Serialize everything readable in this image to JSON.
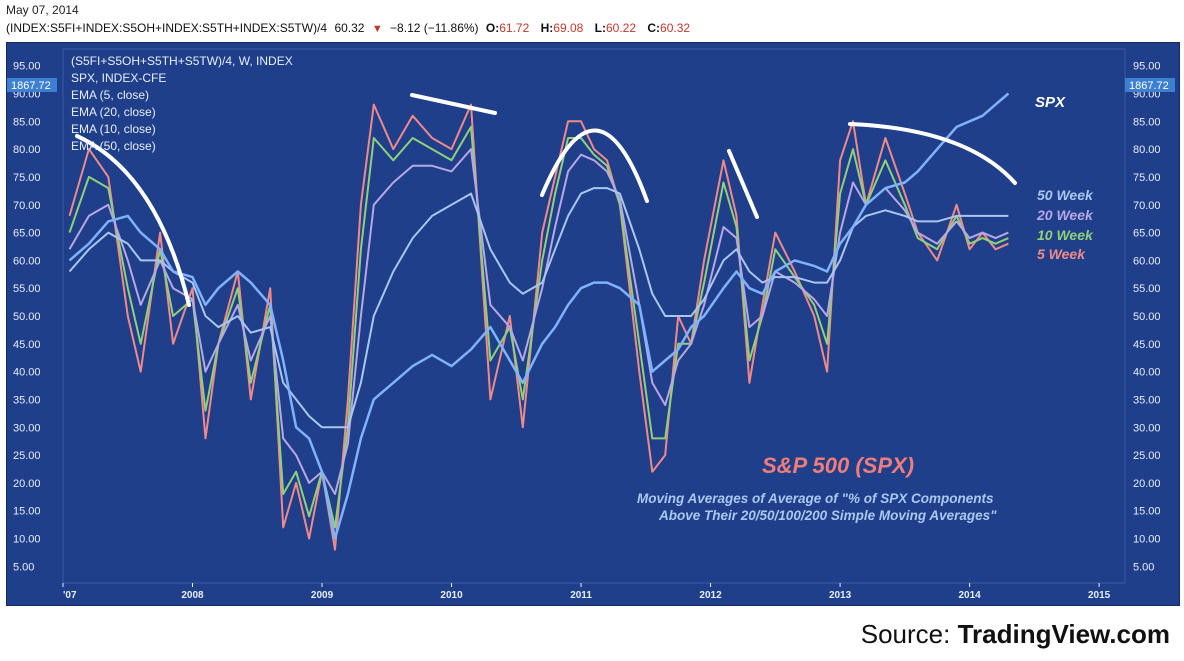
{
  "header": {
    "date": "May 07, 2014",
    "symbol": "(INDEX:S5FI+INDEX:S5OH+INDEX:S5TH+INDEX:S5TW)/4",
    "last": "60.32",
    "change": "−8.12 (−11.86%)",
    "open_label": "O:",
    "open": "61.72",
    "high_label": "H:",
    "high": "69.08",
    "low_label": "L:",
    "low": "60.22",
    "close_label": "C:",
    "close": "60.32"
  },
  "legend": [
    "(S5FI+S5OH+S5TH+S5TW)/4, W, INDEX",
    "SPX, INDEX-CFE",
    "EMA (5, close)",
    "EMA (20, close)",
    "EMA (10, close)",
    "EMA (50, close)"
  ],
  "annotations": {
    "title": "S&P 500 (SPX)",
    "subtitle_line1": "Moving Averages of Average of \"% of SPX Components",
    "subtitle_line2": "Above Their 20/50/100/200 Simple Moving Averages\"",
    "spx_label": "SPX",
    "ma_labels": [
      "50 Week",
      "20 Week",
      "10 Week",
      "5 Week"
    ]
  },
  "price_tag": "1867.72",
  "source_prefix": "Source:",
  "source_name": "TradingView.com",
  "colors": {
    "background": "#1f3f8a",
    "ema5": "#f08a8a",
    "ema10": "#8fd07a",
    "ema20": "#b8a6e6",
    "ema50": "#a9c6f0",
    "spx": "#7fb2ff",
    "title": "#f07c7c",
    "subtitle": "#a9c8f2"
  },
  "chart_data": {
    "type": "line",
    "title": "S&P 500 (SPX)",
    "y_ticks": [
      "95.00",
      "90.00",
      "85.00",
      "80.00",
      "75.00",
      "70.00",
      "65.00",
      "60.00",
      "55.00",
      "50.00",
      "45.00",
      "40.00",
      "35.00",
      "30.00",
      "25.00",
      "20.00",
      "15.00",
      "10.00",
      "5.00"
    ],
    "ylim": [
      2,
      98
    ],
    "x_ticks": [
      "'07",
      "2008",
      "2009",
      "2010",
      "2011",
      "2012",
      "2013",
      "2014",
      "2015"
    ],
    "x_tick_values": [
      2007.0,
      2008.0,
      2009.0,
      2010.0,
      2011.0,
      2012.0,
      2013.0,
      2014.0,
      2015.0
    ],
    "xlim": [
      2007.0,
      2015.2
    ],
    "series": [
      {
        "name": "EMA (5, close)",
        "x": [
          2007.05,
          2007.2,
          2007.35,
          2007.5,
          2007.6,
          2007.75,
          2007.85,
          2008.0,
          2008.1,
          2008.2,
          2008.35,
          2008.45,
          2008.6,
          2008.7,
          2008.8,
          2008.9,
          2009.0,
          2009.1,
          2009.2,
          2009.3,
          2009.4,
          2009.55,
          2009.7,
          2009.85,
          2010.0,
          2010.15,
          2010.3,
          2010.45,
          2010.55,
          2010.7,
          2010.8,
          2010.9,
          2011.0,
          2011.1,
          2011.2,
          2011.3,
          2011.45,
          2011.55,
          2011.65,
          2011.75,
          2011.85,
          2011.95,
          2012.1,
          2012.2,
          2012.3,
          2012.4,
          2012.5,
          2012.65,
          2012.8,
          2012.9,
          2013.0,
          2013.1,
          2013.2,
          2013.35,
          2013.5,
          2013.6,
          2013.75,
          2013.9,
          2014.0,
          2014.1,
          2014.2,
          2014.3
        ],
        "values": [
          68,
          80,
          75,
          50,
          40,
          65,
          45,
          55,
          28,
          45,
          58,
          35,
          55,
          12,
          20,
          10,
          22,
          8,
          35,
          70,
          88,
          80,
          86,
          82,
          80,
          88,
          35,
          50,
          30,
          65,
          75,
          85,
          85,
          80,
          78,
          70,
          40,
          22,
          25,
          50,
          45,
          60,
          78,
          68,
          38,
          52,
          65,
          58,
          50,
          40,
          78,
          85,
          70,
          82,
          72,
          65,
          60,
          70,
          62,
          65,
          62,
          63
        ]
      },
      {
        "name": "EMA (10, close)",
        "x": [
          2007.05,
          2007.2,
          2007.35,
          2007.5,
          2007.6,
          2007.75,
          2007.85,
          2008.0,
          2008.1,
          2008.2,
          2008.35,
          2008.45,
          2008.6,
          2008.7,
          2008.8,
          2008.9,
          2009.0,
          2009.1,
          2009.2,
          2009.3,
          2009.4,
          2009.55,
          2009.7,
          2009.85,
          2010.0,
          2010.15,
          2010.3,
          2010.45,
          2010.55,
          2010.7,
          2010.8,
          2010.9,
          2011.0,
          2011.1,
          2011.2,
          2011.3,
          2011.45,
          2011.55,
          2011.65,
          2011.75,
          2011.85,
          2011.95,
          2012.1,
          2012.2,
          2012.3,
          2012.4,
          2012.5,
          2012.65,
          2012.8,
          2012.9,
          2013.0,
          2013.1,
          2013.2,
          2013.35,
          2013.5,
          2013.6,
          2013.75,
          2013.9,
          2014.0,
          2014.1,
          2014.2,
          2014.3
        ],
        "values": [
          65,
          75,
          73,
          55,
          45,
          62,
          50,
          53,
          33,
          45,
          55,
          38,
          52,
          18,
          22,
          14,
          22,
          12,
          30,
          62,
          82,
          78,
          82,
          80,
          78,
          84,
          42,
          48,
          35,
          60,
          72,
          82,
          82,
          79,
          77,
          70,
          45,
          28,
          28,
          45,
          45,
          56,
          74,
          66,
          42,
          50,
          62,
          57,
          52,
          45,
          72,
          80,
          70,
          78,
          70,
          64,
          62,
          68,
          63,
          64,
          63,
          64
        ]
      },
      {
        "name": "EMA (20, close)",
        "x": [
          2007.05,
          2007.2,
          2007.35,
          2007.5,
          2007.6,
          2007.75,
          2007.85,
          2008.0,
          2008.1,
          2008.2,
          2008.35,
          2008.45,
          2008.6,
          2008.7,
          2008.8,
          2008.9,
          2009.0,
          2009.1,
          2009.2,
          2009.3,
          2009.4,
          2009.55,
          2009.7,
          2009.85,
          2010.0,
          2010.15,
          2010.3,
          2010.45,
          2010.55,
          2010.7,
          2010.8,
          2010.9,
          2011.0,
          2011.1,
          2011.2,
          2011.3,
          2011.45,
          2011.55,
          2011.65,
          2011.75,
          2011.85,
          2011.95,
          2012.1,
          2012.2,
          2012.3,
          2012.4,
          2012.5,
          2012.65,
          2012.8,
          2012.9,
          2013.0,
          2013.1,
          2013.2,
          2013.35,
          2013.5,
          2013.6,
          2013.75,
          2013.9,
          2014.0,
          2014.1,
          2014.2,
          2014.3
        ],
        "values": [
          62,
          68,
          70,
          60,
          52,
          60,
          55,
          53,
          40,
          45,
          52,
          42,
          50,
          28,
          25,
          20,
          22,
          18,
          27,
          50,
          70,
          74,
          77,
          77,
          76,
          80,
          52,
          48,
          42,
          55,
          66,
          76,
          79,
          78,
          76,
          71,
          52,
          38,
          34,
          42,
          45,
          52,
          66,
          64,
          48,
          50,
          58,
          56,
          53,
          50,
          65,
          74,
          70,
          73,
          69,
          65,
          63,
          67,
          64,
          65,
          64,
          65
        ]
      },
      {
        "name": "EMA (50, close)",
        "x": [
          2007.05,
          2007.2,
          2007.35,
          2007.5,
          2007.6,
          2007.75,
          2007.85,
          2008.0,
          2008.1,
          2008.2,
          2008.35,
          2008.45,
          2008.6,
          2008.7,
          2008.8,
          2008.9,
          2009.0,
          2009.1,
          2009.2,
          2009.3,
          2009.4,
          2009.55,
          2009.7,
          2009.85,
          2010.0,
          2010.15,
          2010.3,
          2010.45,
          2010.55,
          2010.7,
          2010.8,
          2010.9,
          2011.0,
          2011.1,
          2011.2,
          2011.3,
          2011.45,
          2011.55,
          2011.65,
          2011.75,
          2011.85,
          2011.95,
          2012.1,
          2012.2,
          2012.3,
          2012.4,
          2012.5,
          2012.65,
          2012.8,
          2012.9,
          2013.0,
          2013.1,
          2013.2,
          2013.35,
          2013.5,
          2013.6,
          2013.75,
          2013.9,
          2014.0,
          2014.1,
          2014.2,
          2014.3
        ],
        "values": [
          58,
          62,
          65,
          63,
          60,
          60,
          58,
          56,
          50,
          48,
          50,
          47,
          48,
          38,
          35,
          32,
          30,
          30,
          30,
          38,
          50,
          58,
          64,
          68,
          70,
          72,
          62,
          56,
          54,
          56,
          62,
          68,
          72,
          73,
          73,
          72,
          62,
          54,
          50,
          50,
          50,
          53,
          60,
          62,
          58,
          56,
          57,
          57,
          56,
          56,
          60,
          66,
          68,
          69,
          68,
          67,
          67,
          68,
          68,
          68,
          68,
          68
        ]
      },
      {
        "name": "SPX",
        "x": [
          2007.05,
          2007.2,
          2007.35,
          2007.5,
          2007.6,
          2007.75,
          2007.85,
          2008.0,
          2008.1,
          2008.2,
          2008.35,
          2008.45,
          2008.6,
          2008.7,
          2008.8,
          2008.9,
          2009.0,
          2009.1,
          2009.2,
          2009.3,
          2009.4,
          2009.55,
          2009.7,
          2009.85,
          2010.0,
          2010.15,
          2010.3,
          2010.45,
          2010.55,
          2010.7,
          2010.8,
          2010.9,
          2011.0,
          2011.1,
          2011.2,
          2011.3,
          2011.45,
          2011.55,
          2011.65,
          2011.75,
          2011.85,
          2011.95,
          2012.1,
          2012.2,
          2012.3,
          2012.4,
          2012.5,
          2012.65,
          2012.8,
          2012.9,
          2013.0,
          2013.1,
          2013.2,
          2013.35,
          2013.5,
          2013.6,
          2013.75,
          2013.9,
          2014.0,
          2014.1,
          2014.2,
          2014.3
        ],
        "values": [
          60,
          63,
          67,
          68,
          65,
          62,
          58,
          57,
          52,
          55,
          58,
          56,
          52,
          42,
          30,
          28,
          22,
          10,
          18,
          28,
          35,
          38,
          41,
          43,
          41,
          44,
          48,
          42,
          38,
          45,
          48,
          52,
          55,
          56,
          56,
          55,
          52,
          40,
          42,
          44,
          48,
          50,
          55,
          58,
          55,
          54,
          58,
          60,
          59,
          58,
          63,
          66,
          70,
          73,
          74,
          76,
          80,
          84,
          85,
          86,
          88,
          90
        ]
      }
    ]
  }
}
